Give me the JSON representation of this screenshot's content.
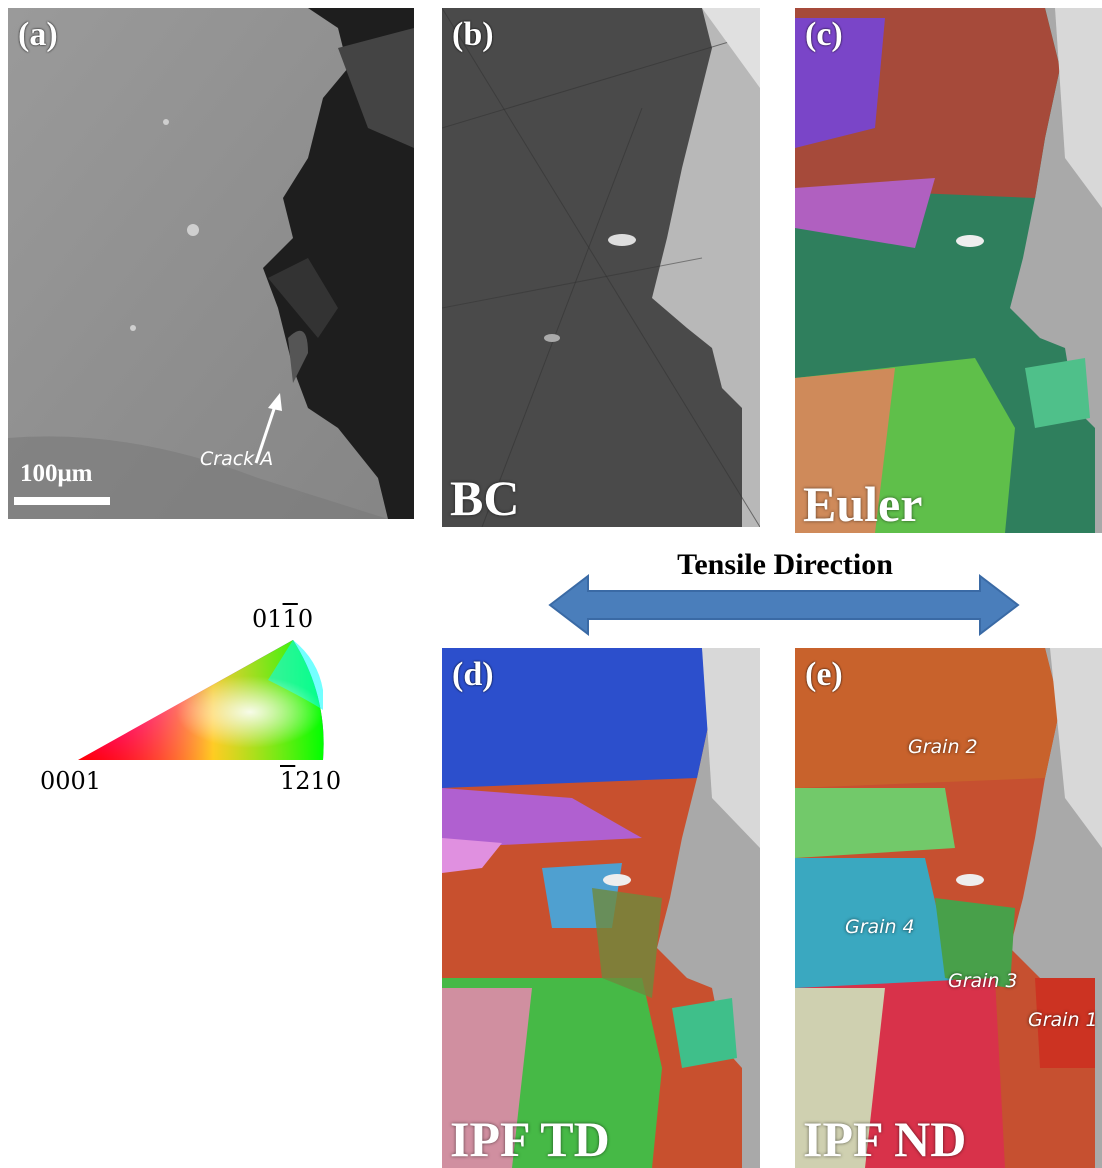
{
  "panels": {
    "a": {
      "label": "(a)",
      "scale_bar": "100μm",
      "annotation": "Crack A"
    },
    "b": {
      "label": "(b)",
      "map_type": "BC"
    },
    "c": {
      "label": "(c)",
      "map_type": "Euler"
    },
    "d": {
      "label": "(d)",
      "map_type": "IPF TD"
    },
    "e": {
      "label": "(e)",
      "map_type": "IPF ND",
      "grains": [
        "Grain 2",
        "Grain 4",
        "Grain 3",
        "Grain 1"
      ]
    }
  },
  "tensile_direction": "Tensile Direction",
  "ipf_key": {
    "corner_basal": "0001",
    "corner_top": {
      "pre": "01",
      "bar": "1",
      "post": "0"
    },
    "corner_right": {
      "bar": "1",
      "post": "210"
    }
  },
  "colors": {
    "arrow": "#4a7ebb",
    "arrow_edge": "#3a6aa5"
  }
}
